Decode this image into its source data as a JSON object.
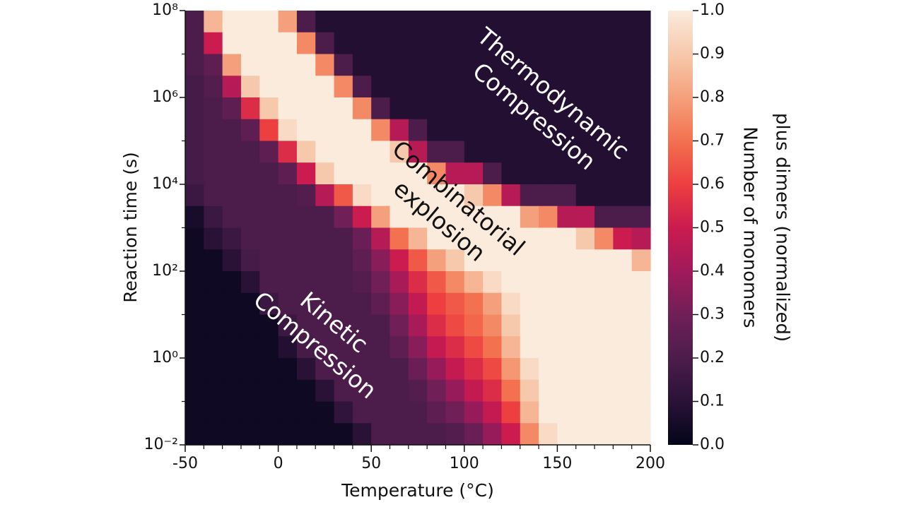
{
  "chart_data": {
    "type": "heatmap",
    "xlabel": "Temperature (°C)",
    "ylabel": "Reaction time (s)",
    "xlim": [
      -50,
      200
    ],
    "xticks": [
      -50,
      0,
      50,
      100,
      150,
      200
    ],
    "xminorticks": [
      -40,
      -30,
      -20,
      -10,
      10,
      20,
      30,
      40,
      60,
      70,
      80,
      90,
      110,
      120,
      130,
      140,
      160,
      170,
      180,
      190
    ],
    "ylim": [
      0.01,
      100000000
    ],
    "log_y": true,
    "yticks": [
      {
        "value": 0.01,
        "label": "10⁻²"
      },
      {
        "value": 1,
        "label": "10⁰"
      },
      {
        "value": 100,
        "label": "10²"
      },
      {
        "value": 10000,
        "label": "10⁴"
      },
      {
        "value": 1000000,
        "label": "10⁶"
      },
      {
        "value": 100000000,
        "label": "10⁸"
      }
    ],
    "yminorticks": [
      0.1,
      10,
      1000,
      100000,
      10000000
    ],
    "colormap": [
      "#03051a",
      "#2a1237",
      "#4c1d4b",
      "#701f57",
      "#a11a5b",
      "#cb1b4f",
      "#ed3f40",
      "#f3714f",
      "#f5a07c",
      "#f7c9ac",
      "#faebdd"
    ],
    "colorbar": {
      "label": [
        "Number of monomers",
        "plus dimers (normalized)"
      ],
      "lim": [
        0,
        1
      ],
      "ticks": [
        {
          "value": 0,
          "label": "0.0"
        },
        0.1,
        0.2,
        0.3,
        0.4,
        0.5,
        0.6,
        0.7,
        0.8,
        0.9,
        {
          "value": 1,
          "label": "1.0"
        }
      ]
    },
    "annotations": [
      {
        "lines": [
          "Thermodynamic",
          "Compression"
        ]
      },
      {
        "lines": [
          "Combinatorial",
          "explosion"
        ]
      },
      {
        "lines": [
          "Kinetic",
          "Compression"
        ]
      }
    ],
    "values": [
      [
        0.2,
        0.85,
        1,
        1,
        1,
        0.8,
        0.2,
        0.08,
        0.08,
        0.08,
        0.08,
        0.08,
        0.08,
        0.08,
        0.08,
        0.08,
        0.08,
        0.08,
        0.08,
        0.08,
        0.08,
        0.08,
        0.08,
        0.08,
        0.08
      ],
      [
        0.2,
        0.5,
        1,
        1,
        1,
        1,
        0.75,
        0.2,
        0.08,
        0.08,
        0.08,
        0.08,
        0.08,
        0.08,
        0.08,
        0.08,
        0.08,
        0.08,
        0.08,
        0.08,
        0.08,
        0.08,
        0.08,
        0.08,
        0.08
      ],
      [
        0.2,
        0.25,
        0.8,
        1,
        1,
        1,
        1,
        0.75,
        0.2,
        0.08,
        0.08,
        0.08,
        0.08,
        0.08,
        0.08,
        0.08,
        0.08,
        0.08,
        0.08,
        0.08,
        0.08,
        0.08,
        0.08,
        0.08,
        0.08
      ],
      [
        0.18,
        0.22,
        0.45,
        0.9,
        1,
        1,
        1,
        1,
        0.75,
        0.2,
        0.08,
        0.08,
        0.08,
        0.08,
        0.08,
        0.08,
        0.08,
        0.08,
        0.08,
        0.08,
        0.08,
        0.08,
        0.08,
        0.08,
        0.08
      ],
      [
        0.18,
        0.2,
        0.25,
        0.55,
        0.9,
        1,
        1,
        1,
        1,
        0.75,
        0.2,
        0.08,
        0.08,
        0.08,
        0.08,
        0.08,
        0.08,
        0.08,
        0.08,
        0.08,
        0.08,
        0.08,
        0.08,
        0.08,
        0.08
      ],
      [
        0.18,
        0.2,
        0.2,
        0.25,
        0.6,
        0.95,
        1,
        1,
        1,
        1,
        0.75,
        0.45,
        0.2,
        0.08,
        0.08,
        0.08,
        0.08,
        0.08,
        0.08,
        0.08,
        0.08,
        0.08,
        0.08,
        0.08,
        0.08
      ],
      [
        0.18,
        0.2,
        0.2,
        0.2,
        0.25,
        0.55,
        0.9,
        1,
        1,
        1,
        1,
        0.9,
        0.45,
        0.2,
        0.2,
        0.08,
        0.08,
        0.08,
        0.08,
        0.08,
        0.08,
        0.08,
        0.08,
        0.08,
        0.08
      ],
      [
        0.18,
        0.2,
        0.2,
        0.2,
        0.2,
        0.25,
        0.5,
        0.9,
        1,
        1,
        1,
        1,
        1,
        0.75,
        0.45,
        0.45,
        0.2,
        0.08,
        0.08,
        0.08,
        0.08,
        0.08,
        0.08,
        0.08,
        0.08
      ],
      [
        0.15,
        0.2,
        0.2,
        0.2,
        0.2,
        0.2,
        0.22,
        0.45,
        0.65,
        0.95,
        1,
        1,
        1,
        1,
        1,
        0.9,
        0.75,
        0.45,
        0.2,
        0.2,
        0.2,
        0.08,
        0.08,
        0.08,
        0.08
      ],
      [
        0.05,
        0.15,
        0.2,
        0.2,
        0.2,
        0.2,
        0.2,
        0.2,
        0.3,
        0.5,
        0.8,
        1,
        1,
        1,
        1,
        1,
        1,
        1,
        0.8,
        0.75,
        0.45,
        0.45,
        0.2,
        0.2,
        0.2
      ],
      [
        0.03,
        0.1,
        0.15,
        0.2,
        0.2,
        0.2,
        0.2,
        0.2,
        0.2,
        0.28,
        0.45,
        0.7,
        0.85,
        1,
        1,
        1,
        1,
        1,
        1,
        1,
        1,
        0.9,
        0.75,
        0.5,
        0.45
      ],
      [
        0.03,
        0.03,
        0.1,
        0.18,
        0.2,
        0.2,
        0.2,
        0.2,
        0.2,
        0.25,
        0.35,
        0.5,
        0.65,
        0.8,
        0.9,
        1,
        1,
        1,
        1,
        1,
        1,
        1,
        1,
        1,
        0.85
      ],
      [
        0.03,
        0.03,
        0.03,
        0.1,
        0.2,
        0.2,
        0.2,
        0.2,
        0.2,
        0.22,
        0.3,
        0.42,
        0.55,
        0.65,
        0.75,
        0.85,
        0.95,
        1,
        1,
        1,
        1,
        1,
        1,
        1,
        1
      ],
      [
        0.03,
        0.03,
        0.03,
        0.03,
        0.15,
        0.2,
        0.2,
        0.2,
        0.2,
        0.2,
        0.25,
        0.35,
        0.48,
        0.6,
        0.65,
        0.7,
        0.8,
        0.95,
        1,
        1,
        1,
        1,
        1,
        1,
        1
      ],
      [
        0.03,
        0.03,
        0.03,
        0.03,
        0.03,
        0.15,
        0.2,
        0.2,
        0.2,
        0.2,
        0.2,
        0.3,
        0.42,
        0.55,
        0.62,
        0.68,
        0.75,
        0.9,
        1,
        1,
        1,
        1,
        1,
        1,
        1
      ],
      [
        0.03,
        0.03,
        0.03,
        0.03,
        0.03,
        0.08,
        0.18,
        0.2,
        0.2,
        0.2,
        0.2,
        0.25,
        0.35,
        0.48,
        0.55,
        0.62,
        0.7,
        0.85,
        1,
        1,
        1,
        1,
        1,
        1,
        1
      ],
      [
        0.03,
        0.03,
        0.03,
        0.03,
        0.03,
        0.03,
        0.1,
        0.2,
        0.2,
        0.2,
        0.2,
        0.2,
        0.28,
        0.38,
        0.48,
        0.55,
        0.62,
        0.78,
        0.95,
        1,
        1,
        1,
        1,
        1,
        1
      ],
      [
        0.03,
        0.03,
        0.03,
        0.03,
        0.03,
        0.03,
        0.03,
        0.1,
        0.2,
        0.2,
        0.2,
        0.2,
        0.22,
        0.3,
        0.38,
        0.48,
        0.55,
        0.7,
        0.9,
        1,
        1,
        1,
        1,
        1,
        1
      ],
      [
        0.03,
        0.03,
        0.03,
        0.03,
        0.03,
        0.03,
        0.03,
        0.03,
        0.12,
        0.2,
        0.2,
        0.2,
        0.2,
        0.25,
        0.3,
        0.38,
        0.48,
        0.6,
        0.85,
        1,
        1,
        1,
        1,
        1,
        1
      ],
      [
        0.03,
        0.03,
        0.03,
        0.03,
        0.03,
        0.03,
        0.03,
        0.03,
        0.03,
        0.1,
        0.2,
        0.2,
        0.2,
        0.2,
        0.22,
        0.28,
        0.38,
        0.5,
        0.75,
        0.95,
        1,
        1,
        1,
        1,
        1
      ]
    ]
  }
}
